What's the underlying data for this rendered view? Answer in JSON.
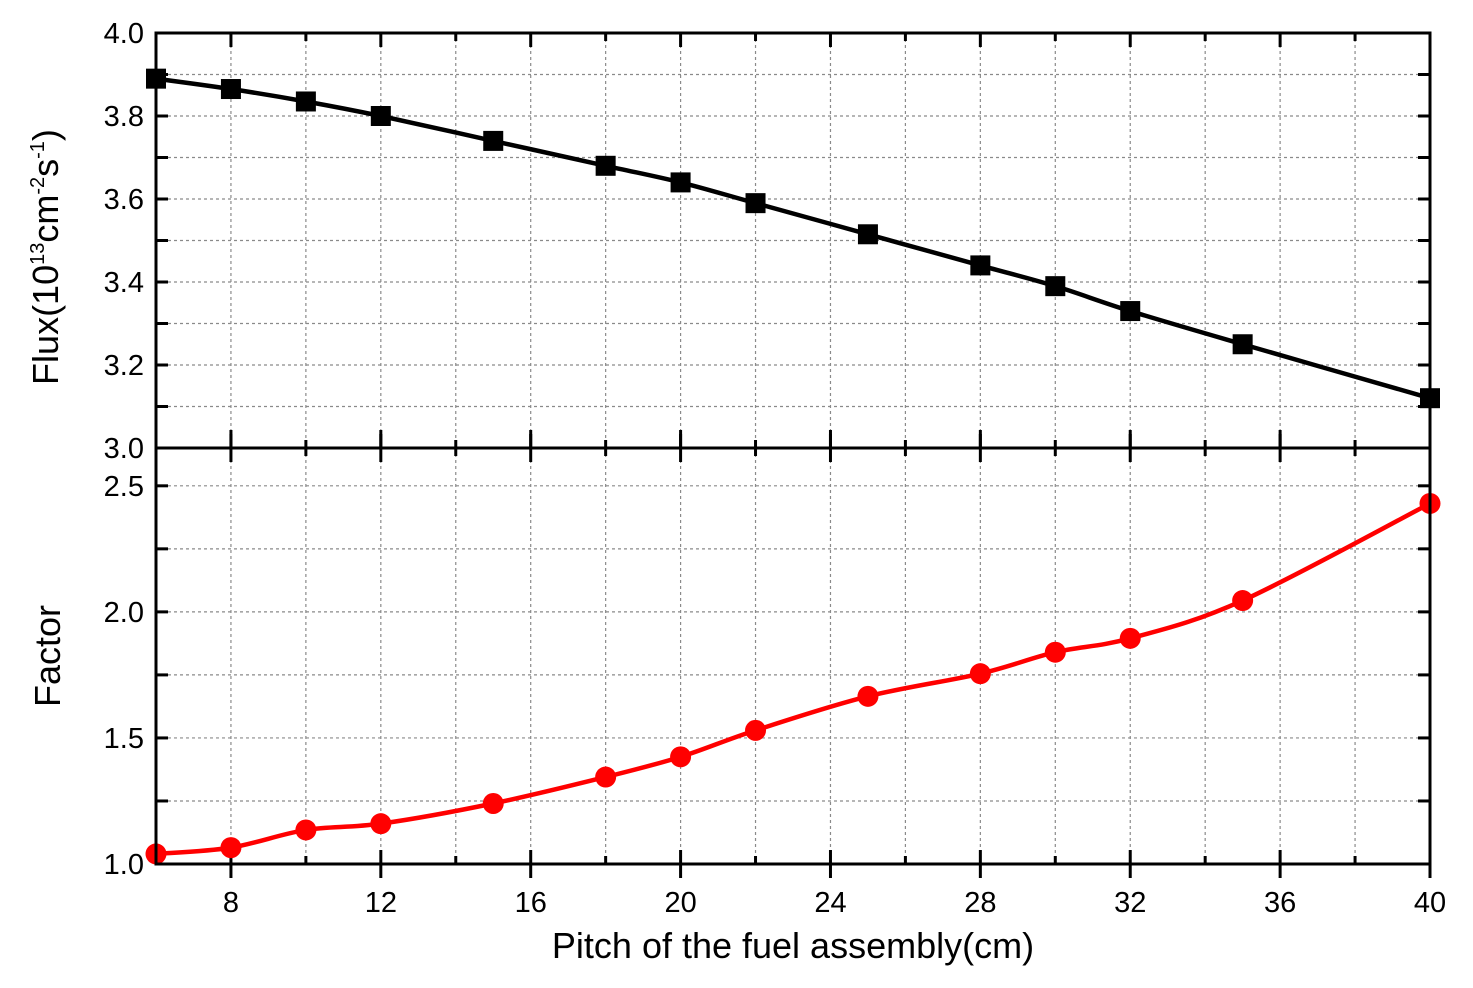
{
  "chart_data": [
    {
      "type": "line",
      "panel": "top",
      "ylabel": {
        "base": "Flux(10",
        "exp1": "13",
        "unit1": "cm",
        "exp2": "-2",
        "unit2": "s",
        "exp3": "-1",
        "close": ")"
      },
      "ylim": [
        3.0,
        4.0
      ],
      "yticks": [
        "3.0",
        "3.2",
        "3.4",
        "3.6",
        "3.8",
        "4.0"
      ],
      "xlim": [
        6,
        40
      ],
      "grid": true,
      "series": [
        {
          "marker": "square",
          "color": "#000000",
          "x": [
            6,
            8,
            10,
            12,
            15,
            18,
            20,
            22,
            25,
            28,
            30,
            32,
            35,
            40
          ],
          "values": [
            3.89,
            3.865,
            3.835,
            3.8,
            3.74,
            3.68,
            3.64,
            3.59,
            3.515,
            3.44,
            3.39,
            3.33,
            3.25,
            3.12
          ]
        }
      ]
    },
    {
      "type": "line",
      "panel": "bottom",
      "ylabel": "Factor",
      "xlabel": "Pitch of the fuel assembly(cm)",
      "ylim": [
        1.0,
        2.65
      ],
      "yticks": [
        "1.0",
        "1.5",
        "2.0",
        "2.5"
      ],
      "xlim": [
        6,
        40
      ],
      "xticks": [
        "8",
        "12",
        "16",
        "20",
        "24",
        "28",
        "32",
        "36",
        "40"
      ],
      "grid": true,
      "series": [
        {
          "marker": "circle",
          "color": "#ff0000",
          "x": [
            6,
            8,
            10,
            12,
            15,
            18,
            20,
            22,
            25,
            28,
            30,
            32,
            35,
            40
          ],
          "values": [
            1.04,
            1.065,
            1.135,
            1.16,
            1.24,
            1.345,
            1.425,
            1.53,
            1.665,
            1.755,
            1.84,
            1.895,
            2.045,
            2.43
          ]
        }
      ]
    }
  ]
}
